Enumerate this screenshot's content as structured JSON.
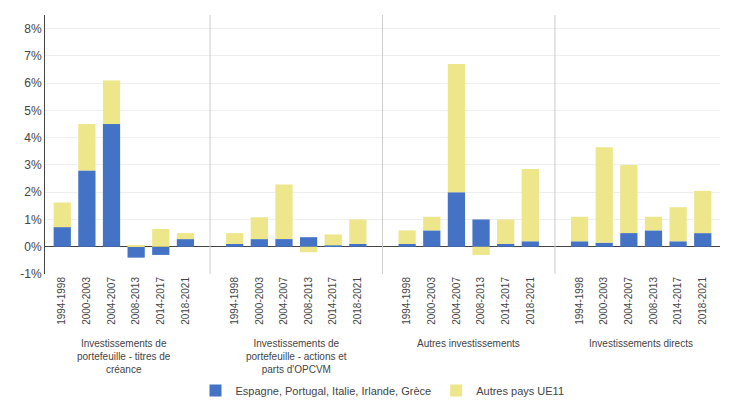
{
  "chart_data": {
    "type": "bar",
    "stacked": true,
    "categories": [
      "1994-1998",
      "2000-2003",
      "2004-2007",
      "2008-2013",
      "2014-2017",
      "2018-2021"
    ],
    "groups": [
      "Investissements de\nportefeuille - titres de\ncréance",
      "Investissements de\nportefeuille - actions et\nparts d'OPCVM",
      "Autres investissements",
      "Investissements directs"
    ],
    "series": [
      {
        "name": "Espagne, Portugal, Italie, Irlande, Grèce",
        "color": "#4472C4",
        "values": [
          [
            0.72,
            2.8,
            4.5,
            -0.4,
            -0.3,
            0.28
          ],
          [
            0.1,
            0.28,
            0.28,
            0.35,
            0.05,
            0.1
          ],
          [
            0.1,
            0.6,
            2.0,
            1.0,
            0.1,
            0.2
          ],
          [
            0.2,
            0.15,
            0.5,
            0.6,
            0.2,
            0.5
          ]
        ]
      },
      {
        "name": "Autres pays UE11",
        "color": "#EDE68A",
        "values": [
          [
            0.9,
            1.7,
            1.6,
            0.05,
            0.65,
            0.22
          ],
          [
            0.4,
            0.8,
            2.0,
            -0.2,
            0.4,
            0.9
          ],
          [
            0.5,
            0.5,
            4.7,
            -0.3,
            0.9,
            2.65
          ],
          [
            0.9,
            3.5,
            2.5,
            0.5,
            1.25,
            1.55
          ]
        ]
      }
    ],
    "ylim": [
      -1.0,
      8.5
    ],
    "yticks": [
      {
        "value": -1,
        "label": "-1%"
      },
      {
        "value": 0,
        "label": "0%"
      },
      {
        "value": 1,
        "label": "1%"
      },
      {
        "value": 2,
        "label": "2%"
      },
      {
        "value": 3,
        "label": "3%"
      },
      {
        "value": 4,
        "label": "4%"
      },
      {
        "value": 5,
        "label": "5%"
      },
      {
        "value": 6,
        "label": "6%"
      },
      {
        "value": 7,
        "label": "7%"
      },
      {
        "value": 8,
        "label": "8%"
      }
    ],
    "grid": true,
    "legend": "bottom"
  }
}
